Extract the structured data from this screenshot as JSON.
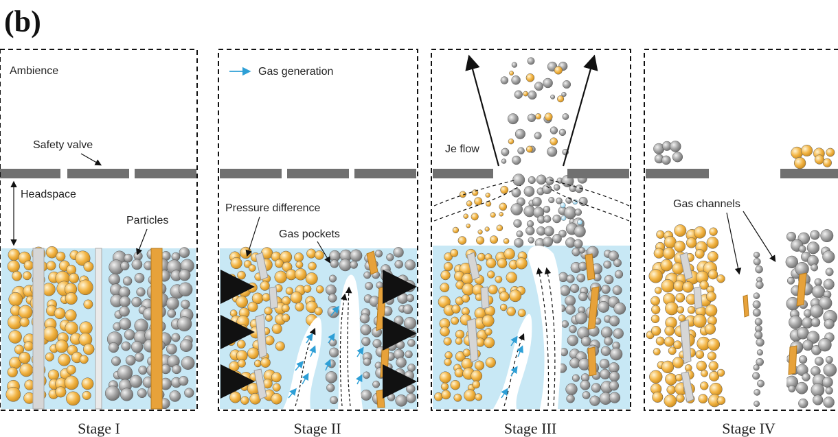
{
  "figure": {
    "panel_letter": "(b)",
    "stages": [
      {
        "id": "stage-1",
        "caption": "Stage I",
        "labels": {
          "ambience": "Ambience",
          "safety_valve": "Safety valve",
          "headspace": "Headspace",
          "particles": "Particles"
        }
      },
      {
        "id": "stage-2",
        "caption": "Stage II",
        "labels": {
          "gas_generation": "Gas generation",
          "pressure_difference": "Pressure difference",
          "gas_pockets": "Gas pockets"
        }
      },
      {
        "id": "stage-3",
        "caption": "Stage III",
        "labels": {
          "jet_flow": "Je flow"
        }
      },
      {
        "id": "stage-4",
        "caption": "Stage IV",
        "labels": {
          "gas_channels": "Gas channels"
        }
      }
    ],
    "colors": {
      "electrolyte": "#c8e8f5",
      "gold_particle": "#f3b545",
      "gray_particle": "#a3a3a3",
      "separator": "#e7a23a",
      "valve": "#707070",
      "gas_arrow": "#2e9fd6",
      "membrane": "#d6d6d6"
    }
  }
}
